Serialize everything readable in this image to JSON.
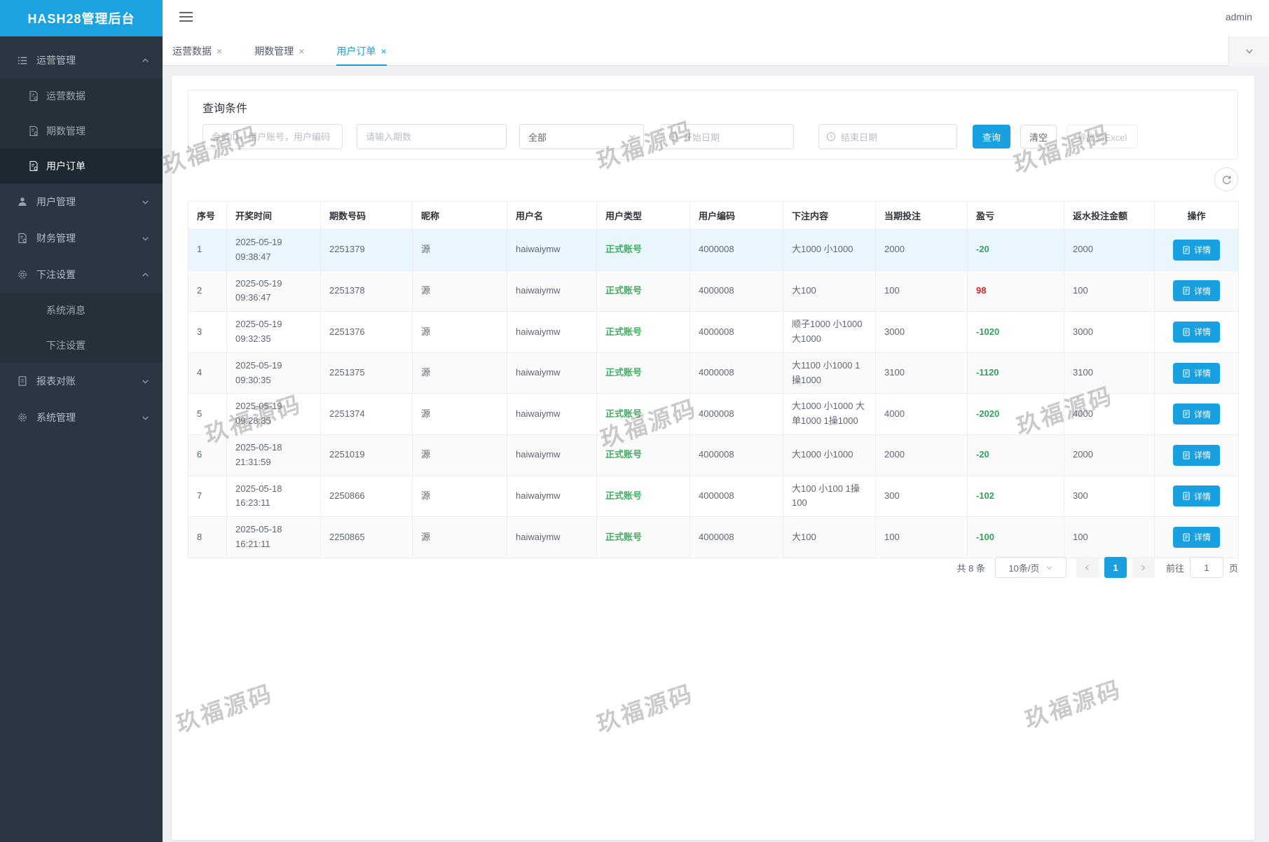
{
  "app": {
    "title": "HASH28管理后台",
    "user": "admin"
  },
  "colors": {
    "primary": "#18a0e0",
    "logo_bg": "#1ba2e1",
    "sidebar_bg": "#2b3642",
    "submenu_bg": "#26303b",
    "active_item_bg": "#1e2832",
    "profit_negative_green": "#33a05f",
    "profit_positive_red": "#d9232e",
    "account_type_green": "#43ae63",
    "row_highlight": "#eaf6fd",
    "row_stripe": "#fafafa"
  },
  "sidebar": {
    "groups": [
      {
        "label": "运营管理",
        "icon": "list-icon",
        "expanded": true,
        "children": [
          {
            "label": "运营数据",
            "icon": "doc-gear-icon",
            "active": false
          },
          {
            "label": "期数管理",
            "icon": "doc-gear-icon",
            "active": false
          },
          {
            "label": "用户订单",
            "icon": "doc-gear-icon",
            "active": true
          }
        ]
      },
      {
        "label": "用户管理",
        "icon": "user-icon",
        "expanded": false,
        "children": []
      },
      {
        "label": "财务管理",
        "icon": "doc-gear-icon",
        "expanded": false,
        "children": []
      },
      {
        "label": "下注设置",
        "icon": "gear-icon",
        "expanded": true,
        "children": [
          {
            "label": "系统消息",
            "icon": null,
            "active": false
          },
          {
            "label": "下注设置",
            "icon": null,
            "active": false
          }
        ]
      },
      {
        "label": "报表对账",
        "icon": "doc-icon",
        "expanded": false,
        "children": []
      },
      {
        "label": "系统管理",
        "icon": "gear-icon",
        "expanded": false,
        "children": []
      }
    ]
  },
  "tabs": [
    {
      "label": "运营数据",
      "active": false
    },
    {
      "label": "期数管理",
      "active": false
    },
    {
      "label": "用户订单",
      "active": true
    }
  ],
  "filter": {
    "title": "查询条件",
    "user_placeholder": "会员ID，用户账号，用户编码",
    "period_placeholder": "请输入期数",
    "type_value": "全部",
    "start_placeholder": "开始日期",
    "end_placeholder": "结束日期",
    "search_label": "查询",
    "clear_label": "清空",
    "export_label": "导出到Excel"
  },
  "table": {
    "headers": [
      "序号",
      "开奖时间",
      "期数号码",
      "昵称",
      "用户名",
      "用户类型",
      "用户编码",
      "下注内容",
      "当期投注",
      "盈亏",
      "返水投注金额",
      "操作"
    ],
    "detail_label": "详情",
    "rows": [
      {
        "no": "1",
        "time": "2025-05-19 09:38:47",
        "period": "2251379",
        "nick": "源",
        "username": "haiwaiymw",
        "type": "正式账号",
        "code": "4000008",
        "bet": "大1000 小1000",
        "amount": "2000",
        "pl": "-20",
        "rebate": "2000"
      },
      {
        "no": "2",
        "time": "2025-05-19 09:36:47",
        "period": "2251378",
        "nick": "源",
        "username": "haiwaiymw",
        "type": "正式账号",
        "code": "4000008",
        "bet": "大100",
        "amount": "100",
        "pl": "98",
        "rebate": "100"
      },
      {
        "no": "3",
        "time": "2025-05-19 09:32:35",
        "period": "2251376",
        "nick": "源",
        "username": "haiwaiymw",
        "type": "正式账号",
        "code": "4000008",
        "bet": "顺子1000 小1000 大1000",
        "amount": "3000",
        "pl": "-1020",
        "rebate": "3000"
      },
      {
        "no": "4",
        "time": "2025-05-19 09:30:35",
        "period": "2251375",
        "nick": "源",
        "username": "haiwaiymw",
        "type": "正式账号",
        "code": "4000008",
        "bet": "大1100 小1000 1操1000",
        "amount": "3100",
        "pl": "-1120",
        "rebate": "3100"
      },
      {
        "no": "5",
        "time": "2025-05-19 09:28:35",
        "period": "2251374",
        "nick": "源",
        "username": "haiwaiymw",
        "type": "正式账号",
        "code": "4000008",
        "bet": "大1000 小1000 大单1000 1操1000",
        "amount": "4000",
        "pl": "-2020",
        "rebate": "4000"
      },
      {
        "no": "6",
        "time": "2025-05-18 21:31:59",
        "period": "2251019",
        "nick": "源",
        "username": "haiwaiymw",
        "type": "正式账号",
        "code": "4000008",
        "bet": "大1000 小1000",
        "amount": "2000",
        "pl": "-20",
        "rebate": "2000"
      },
      {
        "no": "7",
        "time": "2025-05-18 16:23:11",
        "period": "2250866",
        "nick": "源",
        "username": "haiwaiymw",
        "type": "正式账号",
        "code": "4000008",
        "bet": "大100 小100 1操100",
        "amount": "300",
        "pl": "-102",
        "rebate": "300"
      },
      {
        "no": "8",
        "time": "2025-05-18 16:21:11",
        "period": "2250865",
        "nick": "源",
        "username": "haiwaiymw",
        "type": "正式账号",
        "code": "4000008",
        "bet": "大100",
        "amount": "100",
        "pl": "-100",
        "rebate": "100"
      }
    ]
  },
  "pagination": {
    "total": "共 8 条",
    "per_page": "10条/页",
    "page": "1",
    "goto_prefix": "前往",
    "goto_value": "1",
    "goto_suffix": "页"
  },
  "watermark_text": "玖福源码"
}
